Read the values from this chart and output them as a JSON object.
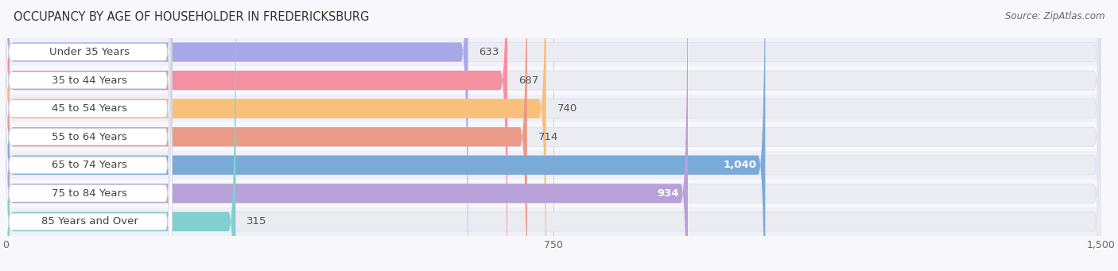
{
  "title": "OCCUPANCY BY AGE OF HOUSEHOLDER IN FREDERICKSBURG",
  "source": "Source: ZipAtlas.com",
  "categories": [
    "Under 35 Years",
    "35 to 44 Years",
    "45 to 54 Years",
    "55 to 64 Years",
    "65 to 74 Years",
    "75 to 84 Years",
    "85 Years and Over"
  ],
  "values": [
    633,
    687,
    740,
    714,
    1040,
    934,
    315
  ],
  "bar_colors": [
    "#a8a8e8",
    "#f590a0",
    "#f8c07a",
    "#ec9a88",
    "#7aaad8",
    "#b8a0d8",
    "#80d0d0"
  ],
  "bar_bg_color": "#ebebf2",
  "value_labels": [
    "633",
    "687",
    "740",
    "714",
    "1,040",
    "934",
    "315"
  ],
  "value_label_inside": [
    false,
    false,
    false,
    false,
    true,
    true,
    false
  ],
  "xlim_max": 1500,
  "xticks": [
    0,
    750,
    1500
  ],
  "xticklabels": [
    "0",
    "750",
    "1,500"
  ],
  "title_fontsize": 10.5,
  "source_fontsize": 8.5,
  "label_fontsize": 9.5,
  "value_fontsize": 9.5,
  "tick_fontsize": 9,
  "background_color": "#f8f8fc",
  "row_bg_colors": [
    "#f2f2f8",
    "#f8f8f8"
  ],
  "bar_gap": 0.18,
  "bar_height": 0.68
}
